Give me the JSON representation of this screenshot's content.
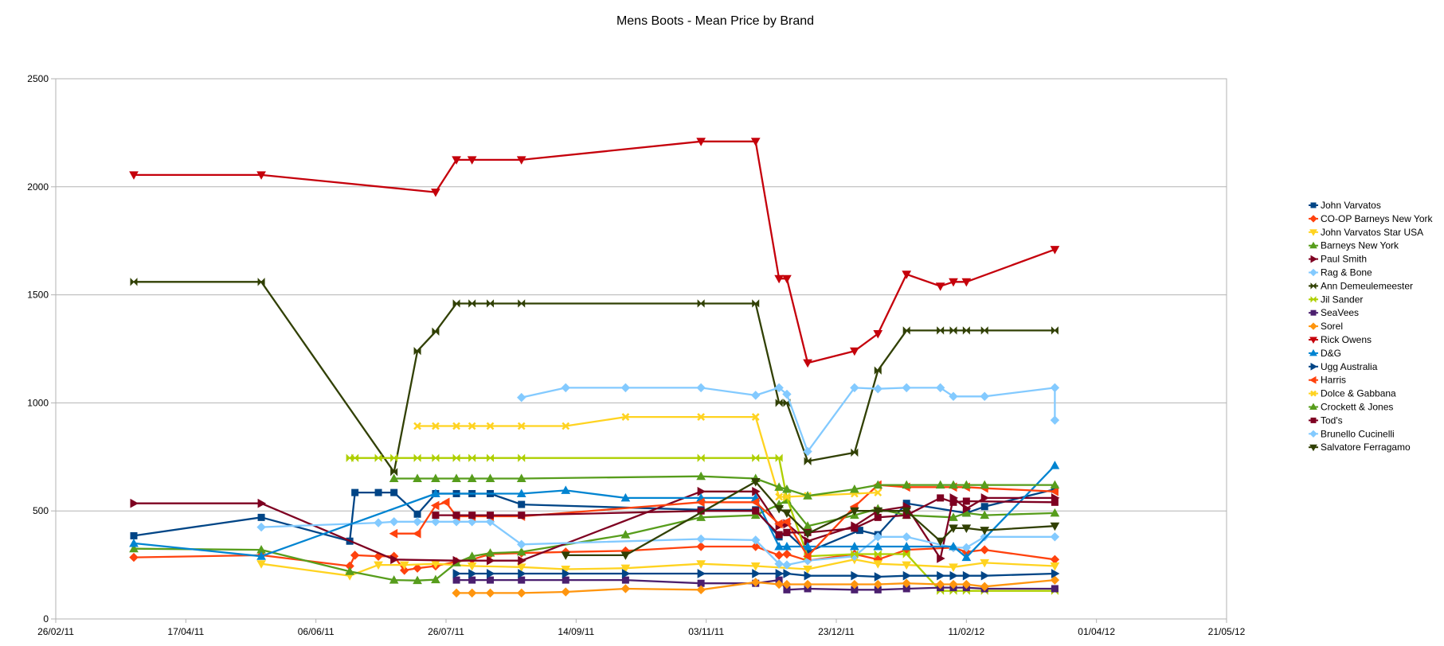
{
  "chart_data": {
    "type": "line",
    "title": "Mens Boots - Mean Price by Brand",
    "xlabel": "",
    "ylabel": "",
    "x_ticks": [
      "26/02/11",
      "17/04/11",
      "06/06/11",
      "26/07/11",
      "14/09/11",
      "03/11/11",
      "23/12/11",
      "11/02/12",
      "01/04/12",
      "21/05/12"
    ],
    "xlim": [
      "2011-02-26",
      "2012-05-21"
    ],
    "ylim": [
      0,
      2500
    ],
    "y_ticks": [
      0,
      500,
      1000,
      1500,
      2000,
      2500
    ],
    "grid": "horizontal",
    "legend_position": "right",
    "series": [
      {
        "name": "John Varvatos",
        "color": "#004586",
        "marker": "square",
        "x": [
          "2011-03-28",
          "2011-05-16",
          "2011-06-19",
          "2011-06-21",
          "2011-06-30",
          "2011-07-06",
          "2011-07-15",
          "2011-07-22",
          "2011-07-30",
          "2011-08-05",
          "2011-08-12",
          "2011-08-24",
          "2011-11-01",
          "2011-11-22",
          "2011-12-01",
          "2011-12-04",
          "2011-12-12",
          "2012-01-01",
          "2012-01-08",
          "2012-01-19",
          "2012-02-11",
          "2012-02-18",
          "2012-03-16"
        ],
        "y": [
          385,
          470,
          360,
          585,
          585,
          585,
          485,
          580,
          580,
          580,
          580,
          530,
          505,
          505,
          380,
          400,
          310,
          410,
          390,
          535,
          490,
          520,
          600
        ]
      },
      {
        "name": "CO-OP Barneys New York",
        "color": "#ff420e",
        "marker": "diamond",
        "x": [
          "2011-03-28",
          "2011-05-16",
          "2011-06-19",
          "2011-06-21",
          "2011-06-30",
          "2011-07-06",
          "2011-07-10",
          "2011-07-15",
          "2011-07-22",
          "2011-07-30",
          "2011-08-05",
          "2011-08-12",
          "2011-08-24",
          "2011-09-10",
          "2011-10-03",
          "2011-11-01",
          "2011-11-22",
          "2011-12-01",
          "2011-12-04",
          "2011-12-12",
          "2011-12-30",
          "2012-01-08",
          "2012-01-19",
          "2012-02-06",
          "2012-02-11",
          "2012-02-18",
          "2012-03-16"
        ],
        "y": [
          285,
          295,
          245,
          295,
          290,
          290,
          225,
          235,
          245,
          265,
          275,
          300,
          305,
          310,
          315,
          335,
          335,
          295,
          300,
          270,
          300,
          275,
          320,
          330,
          310,
          320,
          275
        ]
      },
      {
        "name": "John Varvatos Star USA",
        "color": "#ffd320",
        "marker": "triangle-down",
        "x": [
          "2011-05-16",
          "2011-06-19",
          "2011-06-30",
          "2011-07-10",
          "2011-07-22",
          "2011-08-05",
          "2011-08-24",
          "2011-09-10",
          "2011-10-03",
          "2011-11-01",
          "2011-11-22",
          "2011-12-12",
          "2011-12-30",
          "2012-01-08",
          "2012-01-19",
          "2012-02-06",
          "2012-02-18",
          "2012-03-16"
        ],
        "y": [
          255,
          200,
          250,
          250,
          255,
          245,
          240,
          230,
          235,
          255,
          245,
          230,
          275,
          255,
          250,
          240,
          260,
          245
        ]
      },
      {
        "name": "Barneys New York",
        "color": "#579d1c",
        "marker": "triangle-up",
        "x": [
          "2011-03-28",
          "2011-05-16",
          "2011-06-19",
          "2011-07-06",
          "2011-07-15",
          "2011-07-22",
          "2011-07-30",
          "2011-08-05",
          "2011-08-12",
          "2011-08-24",
          "2011-10-03",
          "2011-11-01",
          "2011-11-22",
          "2011-12-01",
          "2011-12-04",
          "2011-12-12",
          "2011-12-30",
          "2012-01-08",
          "2012-01-19",
          "2012-02-06",
          "2012-02-11",
          "2012-02-18",
          "2012-03-16"
        ],
        "y": [
          325,
          320,
          220,
          180,
          178,
          182,
          260,
          290,
          305,
          310,
          390,
          470,
          480,
          530,
          550,
          430,
          480,
          510,
          480,
          470,
          490,
          480,
          490
        ]
      },
      {
        "name": "Paul Smith",
        "color": "#7e0021",
        "marker": "triangle-right",
        "x": [
          "2011-03-28",
          "2011-05-16",
          "2011-07-06",
          "2011-07-30",
          "2011-08-12",
          "2011-08-24",
          "2011-11-01",
          "2011-11-22",
          "2011-12-01",
          "2011-12-04",
          "2011-12-12",
          "2011-12-30",
          "2012-01-08",
          "2012-01-19",
          "2012-02-01",
          "2012-02-06",
          "2012-02-11",
          "2012-02-18",
          "2012-03-16"
        ],
        "y": [
          535,
          535,
          275,
          270,
          270,
          270,
          590,
          590,
          430,
          440,
          360,
          430,
          500,
          520,
          280,
          560,
          510,
          560,
          560
        ]
      },
      {
        "name": "Rag & Bone",
        "color": "#83caff",
        "marker": "diamond",
        "x": [
          "2011-05-16",
          "2011-06-30",
          "2011-07-06",
          "2011-07-15",
          "2011-07-22",
          "2011-07-30",
          "2011-08-05",
          "2011-08-12",
          "2011-08-24",
          "2011-11-01",
          "2011-11-22",
          "2011-12-01",
          "2011-12-04",
          "2011-12-12",
          "2011-12-30",
          "2012-01-08",
          "2012-01-19",
          "2012-02-06",
          "2012-02-11",
          "2012-02-18",
          "2012-03-16"
        ],
        "y": [
          425,
          445,
          450,
          450,
          450,
          450,
          450,
          450,
          345,
          370,
          365,
          255,
          250,
          270,
          290,
          380,
          380,
          330,
          330,
          380,
          380
        ]
      },
      {
        "name": "Ann Demeulemeester",
        "color": "#314004",
        "marker": "bowtie",
        "x": [
          "2011-03-28",
          "2011-05-16",
          "2011-07-06",
          "2011-07-15",
          "2011-07-22",
          "2011-07-30",
          "2011-08-05",
          "2011-08-12",
          "2011-08-24",
          "2011-11-01",
          "2011-11-22",
          "2011-12-01",
          "2011-12-04",
          "2011-12-12",
          "2011-12-30",
          "2012-01-08",
          "2012-01-19",
          "2012-02-01",
          "2012-02-06",
          "2012-02-11",
          "2012-02-18",
          "2012-03-16"
        ],
        "y": [
          1560,
          1560,
          680,
          1240,
          1330,
          1460,
          1460,
          1460,
          1460,
          1460,
          1460,
          1000,
          1000,
          730,
          770,
          1150,
          1335,
          1335,
          1335,
          1335,
          1335,
          1335
        ]
      },
      {
        "name": "Jil Sander",
        "color": "#aecf00",
        "marker": "bowtie",
        "x": [
          "2011-06-19",
          "2011-06-21",
          "2011-06-30",
          "2011-07-06",
          "2011-07-15",
          "2011-07-22",
          "2011-07-30",
          "2011-08-05",
          "2011-08-12",
          "2011-08-24",
          "2011-11-01",
          "2011-11-22",
          "2011-12-01",
          "2011-12-04",
          "2011-12-12",
          "2011-12-30",
          "2012-01-08",
          "2012-01-19",
          "2012-02-01",
          "2012-02-06",
          "2012-02-11",
          "2012-02-18",
          "2012-03-16"
        ],
        "y": [
          745,
          745,
          745,
          745,
          745,
          745,
          745,
          745,
          745,
          745,
          745,
          745,
          745,
          560,
          290,
          300,
          300,
          300,
          130,
          130,
          130,
          130,
          130
        ]
      },
      {
        "name": "SeaVees",
        "color": "#4b1f6f",
        "marker": "square",
        "x": [
          "2011-07-30",
          "2011-08-05",
          "2011-08-12",
          "2011-08-24",
          "2011-09-10",
          "2011-10-03",
          "2011-11-01",
          "2011-11-22",
          "2011-12-01",
          "2011-12-04",
          "2011-12-12",
          "2011-12-30",
          "2012-01-08",
          "2012-01-19",
          "2012-02-01",
          "2012-02-06",
          "2012-02-11",
          "2012-02-18",
          "2012-03-16"
        ],
        "y": [
          180,
          180,
          180,
          180,
          180,
          180,
          165,
          165,
          180,
          135,
          140,
          135,
          135,
          140,
          145,
          145,
          145,
          140,
          140
        ]
      },
      {
        "name": "Sorel",
        "color": "#ff950e",
        "marker": "diamond",
        "x": [
          "2011-07-30",
          "2011-08-05",
          "2011-08-12",
          "2011-08-24",
          "2011-09-10",
          "2011-10-03",
          "2011-11-01",
          "2011-11-22",
          "2011-12-01",
          "2011-12-04",
          "2011-12-12",
          "2011-12-30",
          "2012-01-08",
          "2012-01-19",
          "2012-02-01",
          "2012-02-06",
          "2012-02-11",
          "2012-02-18",
          "2012-03-16"
        ],
        "y": [
          120,
          120,
          120,
          120,
          125,
          140,
          135,
          170,
          160,
          160,
          160,
          160,
          160,
          165,
          160,
          160,
          160,
          150,
          180
        ]
      },
      {
        "name": "Rick Owens",
        "color": "#c5000b",
        "marker": "triangle-down",
        "x": [
          "2011-03-28",
          "2011-05-16",
          "2011-07-22",
          "2011-07-30",
          "2011-08-05",
          "2011-08-24",
          "2011-11-01",
          "2011-11-22",
          "2011-12-01",
          "2011-12-04",
          "2011-12-12",
          "2011-12-30",
          "2012-01-08",
          "2012-01-19",
          "2012-02-01",
          "2012-02-06",
          "2012-02-11",
          "2012-03-16"
        ],
        "y": [
          2055,
          2055,
          1975,
          2125,
          2125,
          2125,
          2210,
          2210,
          1575,
          1575,
          1185,
          1240,
          1320,
          1595,
          1540,
          1560,
          1560,
          1710
        ]
      },
      {
        "name": "D&G",
        "color": "#0084d1",
        "marker": "triangle-up",
        "x": [
          "2011-03-28",
          "2011-05-16",
          "2011-07-22",
          "2011-08-24",
          "2011-09-10",
          "2011-10-03",
          "2011-11-01",
          "2011-11-22",
          "2011-12-01",
          "2011-12-04",
          "2011-12-12",
          "2011-12-30",
          "2012-01-08",
          "2012-01-19",
          "2012-02-06",
          "2012-02-11",
          "2012-03-16"
        ],
        "y": [
          350,
          290,
          580,
          580,
          595,
          560,
          560,
          560,
          335,
          335,
          335,
          335,
          335,
          335,
          335,
          285,
          710
        ]
      },
      {
        "name": "Ugg Australia",
        "color": "#004586",
        "marker": "triangle-right",
        "x": [
          "2011-07-30",
          "2011-08-05",
          "2011-08-12",
          "2011-08-24",
          "2011-09-10",
          "2011-10-03",
          "2011-11-01",
          "2011-11-22",
          "2011-12-01",
          "2011-12-04",
          "2011-12-12",
          "2011-12-30",
          "2012-01-08",
          "2012-01-19",
          "2012-02-01",
          "2012-02-06",
          "2012-02-11",
          "2012-02-18",
          "2012-03-16"
        ],
        "y": [
          210,
          210,
          210,
          210,
          210,
          210,
          210,
          210,
          210,
          210,
          200,
          200,
          195,
          200,
          200,
          200,
          200,
          200,
          210
        ]
      },
      {
        "name": "Harris",
        "color": "#ff420e",
        "marker": "triangle-left",
        "x": [
          "2011-07-06",
          "2011-07-15",
          "2011-07-22",
          "2011-07-26",
          "2011-07-30",
          "2011-08-05",
          "2011-08-12",
          "2011-08-24",
          "2011-11-01",
          "2011-11-22",
          "2011-12-01",
          "2011-12-04",
          "2011-12-12",
          "2011-12-30",
          "2012-01-08",
          "2012-01-19",
          "2012-02-06",
          "2012-02-11",
          "2012-02-18",
          "2012-03-16"
        ],
        "y": [
          395,
          395,
          525,
          540,
          475,
          475,
          475,
          475,
          540,
          540,
          440,
          450,
          290,
          520,
          620,
          610,
          610,
          610,
          605,
          590
        ]
      },
      {
        "name": "Dolce & Gabbana",
        "color": "#ffd320",
        "marker": "cross",
        "x": [
          "2011-07-15",
          "2011-07-22",
          "2011-07-30",
          "2011-08-05",
          "2011-08-12",
          "2011-08-24",
          "2011-09-10",
          "2011-10-03",
          "2011-11-01",
          "2011-11-22",
          "2011-12-01",
          "2011-12-04",
          "2011-12-12",
          "2011-12-30",
          "2012-01-08"
        ],
        "y": [
          893,
          893,
          893,
          893,
          893,
          893,
          893,
          935,
          935,
          935,
          565,
          565,
          570,
          580,
          585
        ]
      },
      {
        "name": "Crockett & Jones",
        "color": "#579d1c",
        "marker": "triangle-up",
        "x": [
          "2011-07-06",
          "2011-07-15",
          "2011-07-22",
          "2011-07-30",
          "2011-08-05",
          "2011-08-12",
          "2011-08-24",
          "2011-11-01",
          "2011-11-22",
          "2011-12-01",
          "2011-12-04",
          "2011-12-12",
          "2011-12-30",
          "2012-01-08",
          "2012-01-19",
          "2012-02-01",
          "2012-02-06",
          "2012-02-11",
          "2012-02-18",
          "2012-03-16"
        ],
        "y": [
          650,
          650,
          650,
          650,
          650,
          650,
          650,
          660,
          650,
          610,
          600,
          570,
          600,
          620,
          620,
          620,
          620,
          620,
          620,
          620
        ]
      },
      {
        "name": "Tod's",
        "color": "#7e0021",
        "marker": "square",
        "x": [
          "2011-07-22",
          "2011-07-30",
          "2011-08-05",
          "2011-08-12",
          "2011-08-24",
          "2011-11-01",
          "2011-11-22",
          "2011-12-01",
          "2011-12-04",
          "2011-12-12",
          "2011-12-30",
          "2012-01-08",
          "2012-01-19",
          "2012-02-01",
          "2012-02-06",
          "2012-02-11",
          "2012-03-16"
        ],
        "y": [
          480,
          480,
          480,
          480,
          480,
          500,
          500,
          390,
          400,
          400,
          420,
          470,
          480,
          560,
          540,
          545,
          540
        ]
      },
      {
        "name": "Brunello Cucinelli",
        "color": "#83caff",
        "marker": "diamond",
        "x": [
          "2011-08-24",
          "2011-09-10",
          "2011-10-03",
          "2011-11-01",
          "2011-11-22",
          "2011-12-01",
          "2011-12-04",
          "2011-12-12",
          "2011-12-30",
          "2012-01-08",
          "2012-01-19",
          "2012-02-01",
          "2012-02-06",
          "2012-02-18",
          "2012-03-16",
          "2012-03-16"
        ],
        "y": [
          1025,
          1070,
          1070,
          1070,
          1035,
          1070,
          1040,
          775,
          1070,
          1065,
          1070,
          1070,
          1030,
          1030,
          1070,
          920
        ]
      },
      {
        "name": "Salvatore Ferragamo",
        "color": "#314004",
        "marker": "triangle-down",
        "x": [
          "2011-09-10",
          "2011-10-03",
          "2011-11-22",
          "2011-12-01",
          "2011-12-04",
          "2011-12-12",
          "2011-12-30",
          "2012-01-08",
          "2012-01-19",
          "2012-02-01",
          "2012-02-06",
          "2012-02-11",
          "2012-02-18",
          "2012-03-16"
        ],
        "y": [
          295,
          295,
          635,
          510,
          490,
          395,
          500,
          500,
          500,
          360,
          420,
          420,
          410,
          430
        ]
      }
    ]
  }
}
